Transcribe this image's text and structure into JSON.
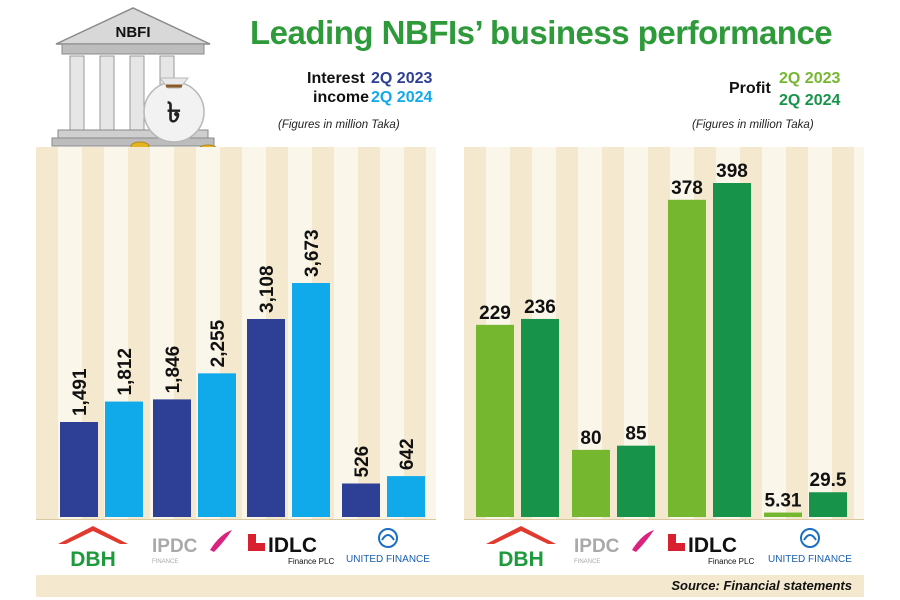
{
  "header": {
    "title": "Leading NBFIs’ business performance",
    "bank_sign": "NBFI",
    "currency_symbol": "৳"
  },
  "left_legend": {
    "label_line1": "Interest",
    "label_line2": "income",
    "year1": "2Q 2023",
    "year2": "2Q 2024",
    "note": "(Figures in million Taka)"
  },
  "right_legend": {
    "label": "Profit",
    "year1": "2Q 2023",
    "year2": "2Q 2024",
    "note": "(Figures in million Taka)"
  },
  "logos": {
    "dbh": "DBH",
    "ipdc": "IPDC",
    "ipdc_sub": "FINANCE",
    "idlc": "IDLC",
    "idlc_sub": "Finance PLC",
    "united": "UNITED FINANCE"
  },
  "source": "Source: Financial statements",
  "colors": {
    "interest_2023": "#2e3f96",
    "interest_2024": "#10a9ea",
    "profit_2023": "#75b82f",
    "profit_2024": "#17944a",
    "title": "#2e9a3a",
    "panel_bg": "#f4e9cf",
    "stripe": "#fbf6ea"
  },
  "chart_data": [
    {
      "type": "bar",
      "categories": [
        "DBH",
        "IPDC",
        "IDLC",
        "UNITED FINANCE"
      ],
      "series": [
        {
          "name": "2Q 2023",
          "values": [
            1491,
            1846,
            3108,
            526
          ],
          "labels": [
            "1,491",
            "1,846",
            "3,108",
            "526"
          ]
        },
        {
          "name": "2Q 2024",
          "values": [
            1812,
            2255,
            3673,
            642
          ],
          "labels": [
            "1,812",
            "2,255",
            "3,673",
            "642"
          ]
        }
      ],
      "ylabel": "Interest income",
      "unit": "(Figures in million Taka)"
    },
    {
      "type": "bar",
      "categories": [
        "DBH",
        "IPDC",
        "IDLC",
        "UNITED FINANCE"
      ],
      "series": [
        {
          "name": "2Q 2023",
          "values": [
            229,
            80,
            378,
            5.31
          ],
          "labels": [
            "229",
            "80",
            "378",
            "5.31"
          ]
        },
        {
          "name": "2Q 2024",
          "values": [
            236,
            85,
            398,
            29.5
          ],
          "labels": [
            "236",
            "85",
            "398",
            "29.5"
          ]
        }
      ],
      "ylabel": "Profit",
      "unit": "(Figures in million Taka)"
    }
  ]
}
